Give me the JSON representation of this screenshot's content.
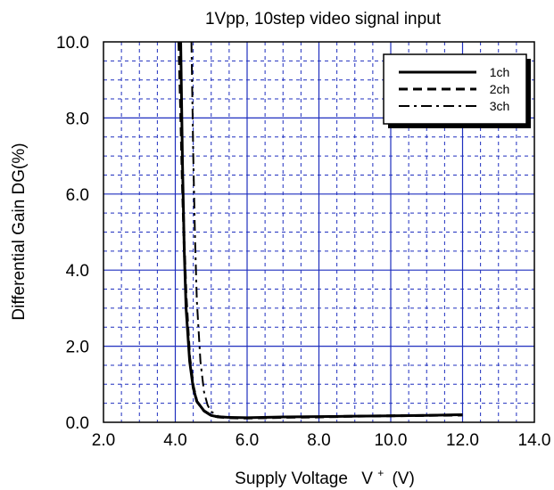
{
  "chart_data": {
    "type": "line",
    "title": "1Vpp, 10step video signal input",
    "xlabel": "Supply Voltage",
    "xlabel_symbol": "V",
    "xlabel_superscript": "+",
    "xlabel_unit": "(V)",
    "ylabel": "Differential Gain  DG(%)",
    "xlim": [
      2.0,
      14.0
    ],
    "ylim": [
      0.0,
      10.0
    ],
    "x_ticks": [
      "2.0",
      "4.0",
      "6.0",
      "8.0",
      "10.0",
      "12.0",
      "14.0"
    ],
    "y_ticks": [
      "0.0",
      "2.0",
      "4.0",
      "6.0",
      "8.0",
      "10.0"
    ],
    "grid": true,
    "legend_position": "top-right",
    "series": [
      {
        "name": "1ch",
        "style": "solid",
        "x": [
          4.15,
          4.2,
          4.25,
          4.3,
          4.4,
          4.5,
          4.6,
          4.8,
          5.0,
          5.2,
          5.5,
          6.0,
          7.0,
          8.0,
          9.0,
          10.0,
          11.0,
          12.0
        ],
        "y": [
          10.0,
          6.8,
          4.5,
          3.0,
          1.6,
          0.9,
          0.55,
          0.3,
          0.18,
          0.14,
          0.13,
          0.12,
          0.14,
          0.15,
          0.16,
          0.17,
          0.18,
          0.2
        ]
      },
      {
        "name": "2ch",
        "style": "dashed",
        "x": [
          4.1,
          4.15,
          4.2,
          4.25,
          4.3,
          4.4,
          4.5,
          4.6,
          4.8,
          5.0,
          5.2,
          5.5,
          6.0,
          7.0,
          8.0,
          9.0,
          10.0,
          11.0,
          12.0
        ],
        "y": [
          10.0,
          8.2,
          6.2,
          4.6,
          3.3,
          1.7,
          0.95,
          0.55,
          0.3,
          0.18,
          0.14,
          0.12,
          0.11,
          0.13,
          0.14,
          0.16,
          0.17,
          0.18,
          0.19
        ]
      },
      {
        "name": "3ch",
        "style": "dash-dot",
        "x": [
          4.45,
          4.5,
          4.55,
          4.6,
          4.7,
          4.8,
          4.9,
          5.0,
          5.2,
          5.5,
          6.0,
          7.0,
          8.0,
          9.0,
          10.0,
          11.0,
          12.0
        ],
        "y": [
          10.0,
          7.0,
          4.8,
          3.2,
          1.6,
          0.8,
          0.45,
          0.28,
          0.16,
          0.13,
          0.12,
          0.13,
          0.15,
          0.16,
          0.17,
          0.18,
          0.19
        ]
      }
    ]
  }
}
